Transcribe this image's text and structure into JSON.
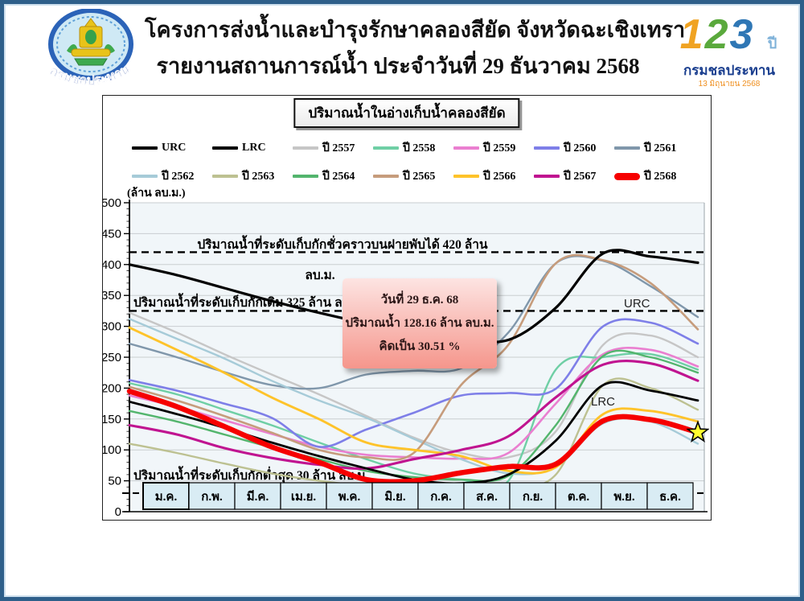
{
  "header": {
    "title_line1": "โครงการส่งน้ำและบำรุงรักษาคลองสียัด จังหวัดฉะเชิงเทรา",
    "title_line2": "รายงานสถานการณ์น้ำ ประจำวันที่ 29 ธันวาคม 2568",
    "seal_caption": "กรมชลประทาน",
    "anniversary_logo": {
      "digit1": "1",
      "digit2": "2",
      "digit3": "3",
      "year_word": "ปี",
      "org": "กรมชลประทาน",
      "date": "13 มิถุนายน 2568"
    }
  },
  "chart_data": {
    "type": "line",
    "title": "ปริมาณน้ำในอ่างเก็บน้ำคลองสียัด",
    "y_unit_label": "(ล้าน ลบ.ม.)",
    "ylim": [
      0,
      500
    ],
    "y_tick_step": 50,
    "grid": true,
    "legend_position": "top",
    "x_categories": [
      "ม.ค.",
      "ก.พ.",
      "มี.ค.",
      "เม.ย.",
      "พ.ค.",
      "มิ.ย.",
      "ก.ค.",
      "ส.ค.",
      "ก.ย.",
      "ต.ค.",
      "พ.ย.",
      "ธ.ค."
    ],
    "reference_lines": [
      {
        "value": 420,
        "label_line1": "ปริมาณน้ำที่ระดับเก็บกักชั่วคราวบนฝายพับได้ 420 ล้าน",
        "label_line2": "ลบ.ม."
      },
      {
        "value": 325,
        "label": "ปริมาณน้ำที่ระดับเก็บกักเดิม 325 ล้าน ลบ.ม."
      },
      {
        "value": 30,
        "label": "ปริมาณน้ำที่ระดับเก็บกักต่ำสุด 30 ล้าน ลบ.ม."
      }
    ],
    "inline_labels": {
      "urc": "URC",
      "lrc": "LRC"
    },
    "annotation": {
      "line1": "วันที่ 29 ธ.ค. 68",
      "line2": "ปริมาณน้ำ 128.16 ล้าน ลบ.ม.",
      "line3": "คิดเป็น 30.51 %"
    },
    "marker": {
      "type": "star",
      "color": "#ffff2e",
      "stroke": "#000000"
    },
    "x_note": "values are monthly estimates Jan-1 through Dec-31 (13 points)",
    "series": [
      {
        "name": "URC",
        "color": "#000000",
        "width": 3.2,
        "values": [
          400,
          383,
          362,
          341,
          322,
          305,
          291,
          281,
          278,
          330,
          418,
          413,
          403
        ]
      },
      {
        "name": "LRC",
        "color": "#000000",
        "width": 2.8,
        "values": [
          178,
          158,
          136,
          112,
          90,
          70,
          52,
          46,
          60,
          115,
          205,
          196,
          180
        ]
      },
      {
        "name": "ปี 2557",
        "color": "#c6c6c6",
        "width": 2.4,
        "values": [
          322,
          290,
          255,
          222,
          190,
          155,
          120,
          95,
          88,
          130,
          270,
          285,
          250
        ]
      },
      {
        "name": "ปี 2558",
        "color": "#6fcfa5",
        "width": 2.4,
        "values": [
          208,
          190,
          165,
          140,
          112,
          85,
          62,
          52,
          50,
          230,
          250,
          255,
          230
        ]
      },
      {
        "name": "ปี 2559",
        "color": "#ea7fd0",
        "width": 2.6,
        "values": [
          188,
          170,
          148,
          126,
          105,
          92,
          88,
          86,
          95,
          175,
          255,
          262,
          235
        ]
      },
      {
        "name": "ปี 2560",
        "color": "#7e7fe8",
        "width": 2.6,
        "values": [
          213,
          196,
          175,
          152,
          105,
          133,
          160,
          188,
          192,
          199,
          300,
          306,
          272
        ]
      },
      {
        "name": "ปี 2561",
        "color": "#8097ab",
        "width": 2.4,
        "values": [
          272,
          250,
          226,
          205,
          200,
          222,
          228,
          232,
          290,
          402,
          406,
          365,
          315
        ]
      },
      {
        "name": "ปี 2562",
        "color": "#a6cbd8",
        "width": 2.4,
        "values": [
          312,
          280,
          248,
          212,
          180,
          152,
          118,
          85,
          62,
          72,
          143,
          146,
          110
        ]
      },
      {
        "name": "ปี 2563",
        "color": "#bdc191",
        "width": 2.4,
        "values": [
          110,
          95,
          78,
          62,
          50,
          42,
          38,
          36,
          40,
          60,
          205,
          200,
          165
        ]
      },
      {
        "name": "ปี 2564",
        "color": "#53b56d",
        "width": 2.4,
        "values": [
          163,
          146,
          125,
          104,
          85,
          66,
          56,
          52,
          58,
          140,
          252,
          250,
          225
        ]
      },
      {
        "name": "ปี 2565",
        "color": "#c69c7c",
        "width": 2.6,
        "values": [
          202,
          180,
          155,
          128,
          100,
          88,
          95,
          205,
          270,
          402,
          407,
          370,
          295
        ]
      },
      {
        "name": "ปี 2566",
        "color": "#fec32a",
        "width": 2.9,
        "values": [
          298,
          262,
          225,
          185,
          150,
          112,
          100,
          90,
          66,
          72,
          158,
          163,
          146
        ]
      },
      {
        "name": "ปี 2567",
        "color": "#c01490",
        "width": 3.1,
        "values": [
          140,
          125,
          103,
          87,
          76,
          70,
          85,
          100,
          122,
          185,
          238,
          240,
          212
        ]
      },
      {
        "name": "ปี 2568",
        "color": "#f60000",
        "width": 6.5,
        "values": [
          195,
          170,
          138,
          105,
          80,
          52,
          50,
          63,
          73,
          77,
          147,
          149,
          128.16
        ]
      }
    ],
    "draw_order": [
      2,
      3,
      4,
      5,
      6,
      7,
      8,
      9,
      10,
      11,
      12,
      0,
      1,
      13
    ]
  }
}
